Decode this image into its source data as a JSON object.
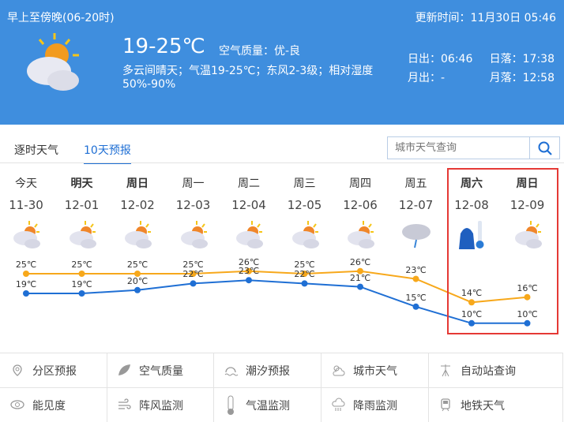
{
  "header": {
    "period": "早上至傍晚(06-20时)",
    "update": "更新时间：11月30日 05:46",
    "temp": "19-25℃",
    "air_quality": "空气质量：优-良",
    "desc": "多云间晴天；气温19-25℃；东风2-3级；相对湿度",
    "humidity": "50%-90%",
    "sunrise": "日出：06:46",
    "sunset": "日落：17:38",
    "moonrise": "月出：-",
    "moonset": "月落：12:58",
    "icon": "partly-cloudy-icon",
    "bg_color": "#3f8ede"
  },
  "tabs": [
    {
      "label": "逐时天气",
      "active": false
    },
    {
      "label": "10天预报",
      "active": true
    }
  ],
  "search": {
    "placeholder": "城市天气查询",
    "icon": "search-icon"
  },
  "chart_data": {
    "type": "line",
    "categories": [
      "11-30",
      "12-01",
      "12-02",
      "12-03",
      "12-04",
      "12-05",
      "12-06",
      "12-07",
      "12-08",
      "12-09"
    ],
    "weekdays": [
      "今天",
      "明天",
      "周日",
      "周一",
      "周二",
      "周三",
      "周四",
      "周五",
      "周六",
      "周日"
    ],
    "weather_icons": [
      "partly-cloudy",
      "partly-cloudy",
      "partly-cloudy",
      "partly-cloudy",
      "partly-cloudy",
      "partly-cloudy",
      "partly-cloudy",
      "rain",
      "cold-warning",
      "partly-cloudy"
    ],
    "series": [
      {
        "values": [
          25,
          25,
          25,
          25,
          26,
          25,
          26,
          23,
          14,
          16
        ],
        "color": "#f7a81b"
      },
      {
        "values": [
          19,
          19,
          20,
          22,
          23,
          22,
          21,
          15,
          10,
          10
        ],
        "color": "#1f6fd4"
      }
    ],
    "labels_high": [
      "25℃",
      "25℃",
      "25℃",
      "25℃",
      "26℃",
      "25℃",
      "26℃",
      "23℃",
      "14℃",
      "16℃"
    ],
    "labels_low": [
      "19℃",
      "19℃",
      "20℃",
      "22℃",
      "23℃",
      "22℃",
      "21℃",
      "15℃",
      "10℃",
      "10℃"
    ],
    "highlight": [
      "12-08",
      "12-09"
    ],
    "highlight_color": "#e53935"
  },
  "links": [
    {
      "label": "分区预报",
      "icon": "map-pin-icon"
    },
    {
      "label": "空气质量",
      "icon": "leaf-icon"
    },
    {
      "label": "潮汐预报",
      "icon": "tide-icon"
    },
    {
      "label": "城市天气",
      "icon": "sun-cloud-icon"
    },
    {
      "label": "自动站查询",
      "icon": "weather-station-icon"
    },
    {
      "label": "能见度",
      "icon": "eye-icon"
    },
    {
      "label": "阵风监测",
      "icon": "wind-icon"
    },
    {
      "label": "气温监测",
      "icon": "thermometer-icon"
    },
    {
      "label": "降雨监测",
      "icon": "rain-cloud-icon"
    },
    {
      "label": "地铁天气",
      "icon": "train-icon"
    }
  ]
}
